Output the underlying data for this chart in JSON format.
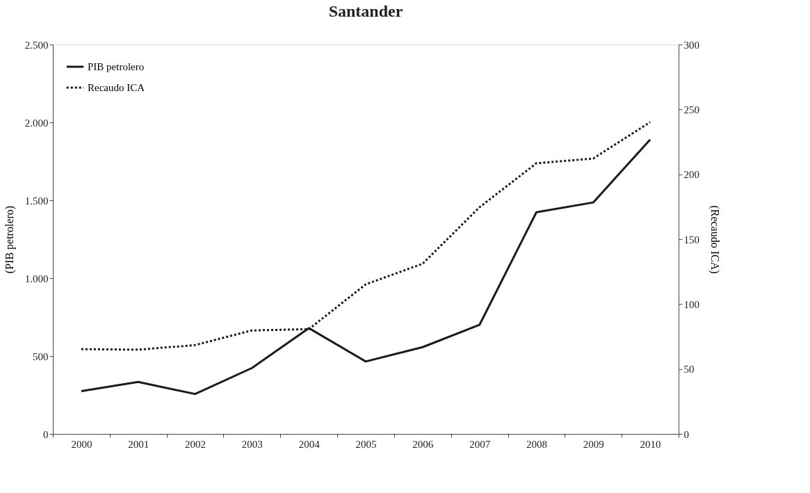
{
  "chart_data": {
    "type": "line",
    "title": "Santander",
    "ylabel": "(PIB petrolero)",
    "y2label": "(Recaudo ICA)",
    "categories": [
      "2000",
      "2001",
      "2002",
      "2003",
      "2004",
      "2005",
      "2006",
      "2007",
      "2008",
      "2009",
      "2010"
    ],
    "series": [
      {
        "name": "PIB petrolero",
        "color": "#1a1a1a",
        "line_style": "solid",
        "values": [
          275,
          334,
          256,
          423,
          679,
          465,
          557,
          700,
          1423,
          1486,
          1890
        ]
      },
      {
        "name": "Recaudo ICA",
        "color": "#1a1a1a",
        "line_style": "dotted",
        "axis": "y2",
        "values": [
          65.3,
          64.9,
          68.4,
          79.7,
          80.7,
          115.2,
          131.1,
          174.6,
          208.5,
          212.2,
          240.2
        ]
      }
    ],
    "ylim": [
      0,
      2500
    ],
    "yticks": [
      0,
      {
        "value": 500,
        "label": "500"
      },
      {
        "value": 1000,
        "label": "1.000"
      },
      {
        "value": 1500,
        "label": "1.500"
      },
      {
        "value": 2000,
        "label": "2.000"
      },
      {
        "value": 2500,
        "label": "2.500"
      }
    ],
    "y2lim": [
      0,
      300
    ],
    "y2ticks": [
      0,
      50,
      100,
      150,
      200,
      250,
      300
    ],
    "legend": "top left",
    "grid": false,
    "marker": "none"
  }
}
